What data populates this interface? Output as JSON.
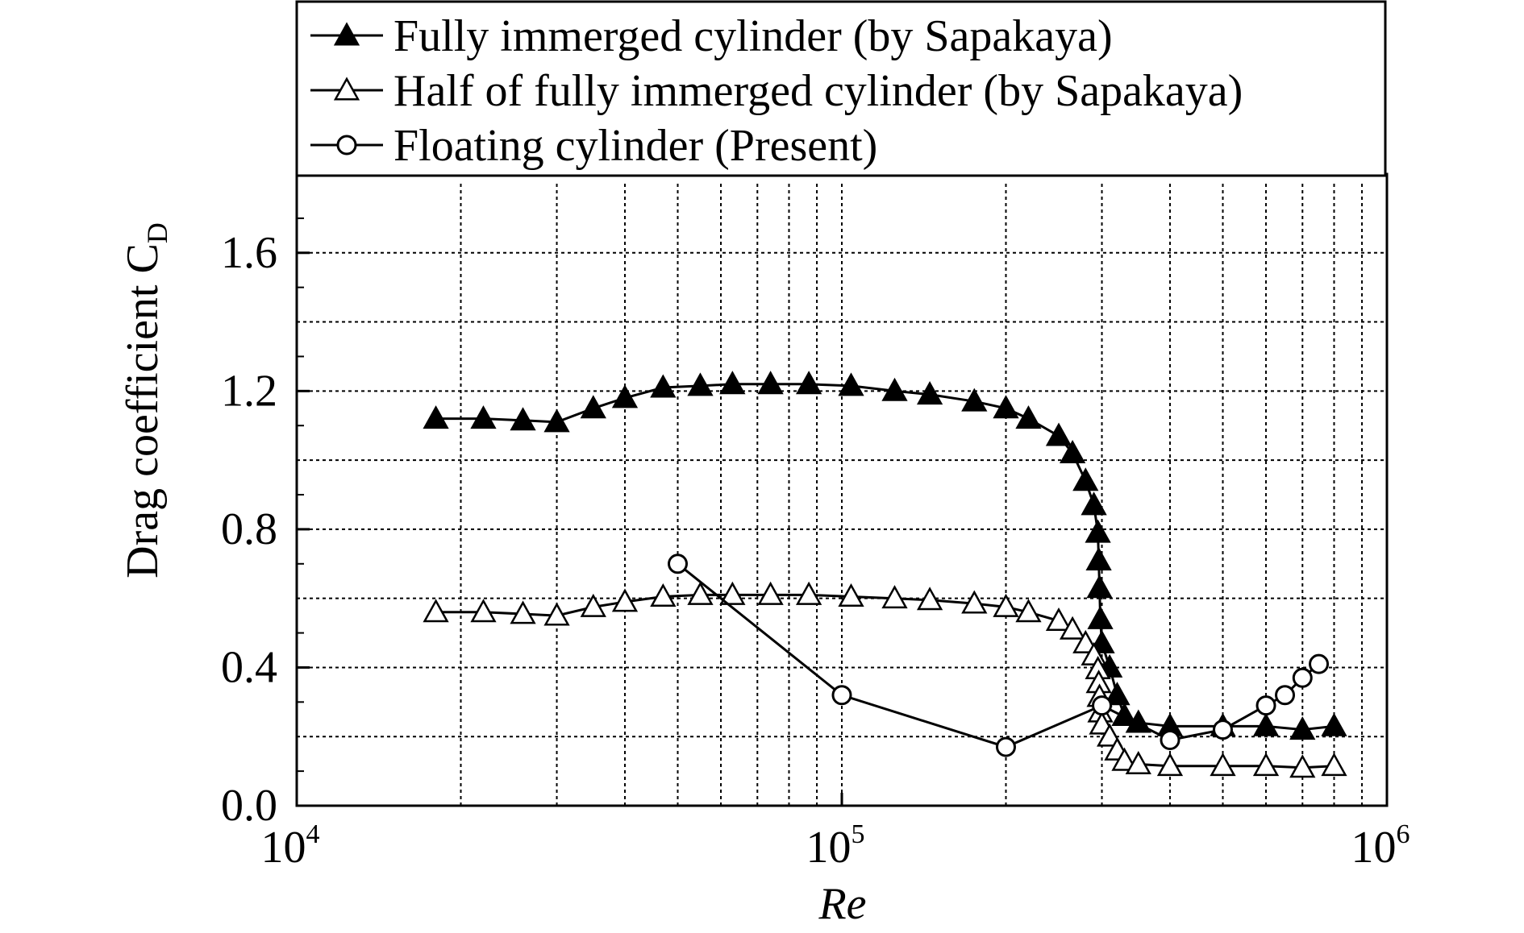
{
  "chart_data": {
    "type": "line",
    "xlabel": "Re",
    "ylabel": "Drag coefficient C",
    "ylabel_subscript": "D",
    "xscale": "log",
    "xlim": [
      10000,
      1000000
    ],
    "ylim": [
      0.0,
      1.8
    ],
    "x_ticks": [
      {
        "base": "10",
        "exp": "4",
        "value": 10000
      },
      {
        "base": "10",
        "exp": "5",
        "value": 100000
      },
      {
        "base": "10",
        "exp": "6",
        "value": 1000000
      }
    ],
    "y_ticks": [
      {
        "label": "0.0",
        "value": 0.0
      },
      {
        "label": "0.4",
        "value": 0.4
      },
      {
        "label": "0.8",
        "value": 0.8
      },
      {
        "label": "1.2",
        "value": 1.2
      },
      {
        "label": "1.6",
        "value": 1.6
      }
    ],
    "grid": true,
    "legend_position": "top",
    "series": [
      {
        "name": "Fully immerged cylinder (by Sapakaya)",
        "marker": "filled-triangle",
        "x": [
          18000,
          22000,
          26000,
          30000,
          35000,
          40000,
          47000,
          55000,
          63000,
          74000,
          87000,
          104000,
          125000,
          145000,
          175000,
          200000,
          220000,
          250000,
          265000,
          280000,
          290000,
          295000,
          296000,
          297000,
          298000,
          300000,
          310000,
          320000,
          330000,
          350000,
          400000,
          500000,
          600000,
          700000,
          800000
        ],
        "y": [
          1.12,
          1.12,
          1.115,
          1.11,
          1.15,
          1.18,
          1.21,
          1.215,
          1.22,
          1.22,
          1.22,
          1.215,
          1.2,
          1.19,
          1.17,
          1.15,
          1.12,
          1.07,
          1.02,
          0.94,
          0.87,
          0.79,
          0.71,
          0.63,
          0.54,
          0.47,
          0.4,
          0.32,
          0.26,
          0.24,
          0.23,
          0.23,
          0.23,
          0.22,
          0.23
        ]
      },
      {
        "name": "Half of fully immerged  cylinder (by Sapakaya)",
        "marker": "open-triangle",
        "x": [
          18000,
          22000,
          26000,
          30000,
          35000,
          40000,
          47000,
          55000,
          63000,
          74000,
          87000,
          104000,
          125000,
          145000,
          175000,
          200000,
          220000,
          250000,
          265000,
          280000,
          290000,
          295000,
          296000,
          297000,
          298000,
          300000,
          310000,
          320000,
          330000,
          350000,
          400000,
          500000,
          600000,
          700000,
          800000
        ],
        "y": [
          0.56,
          0.56,
          0.555,
          0.55,
          0.575,
          0.59,
          0.605,
          0.61,
          0.61,
          0.61,
          0.61,
          0.605,
          0.6,
          0.595,
          0.585,
          0.575,
          0.56,
          0.535,
          0.51,
          0.47,
          0.435,
          0.395,
          0.355,
          0.315,
          0.27,
          0.235,
          0.2,
          0.16,
          0.13,
          0.12,
          0.115,
          0.115,
          0.115,
          0.11,
          0.115
        ]
      },
      {
        "name": "Floating cylinder (Present)",
        "marker": "open-circle",
        "x": [
          50000,
          100000,
          200000,
          300000,
          400000,
          500000,
          600000,
          650000,
          700000,
          750000
        ],
        "y": [
          0.7,
          0.32,
          0.17,
          0.29,
          0.19,
          0.22,
          0.29,
          0.32,
          0.37,
          0.41
        ]
      }
    ]
  }
}
